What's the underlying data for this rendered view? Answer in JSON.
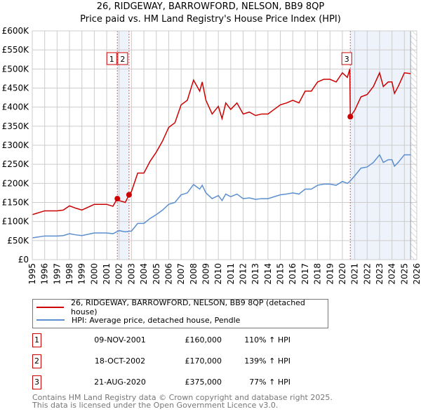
{
  "chart_data": {
    "type": "line",
    "title": "26, RIDGEWAY, BARROWFORD, NELSON, BB9 8QP",
    "subtitle": "Price paid vs. HM Land Registry's House Price Index (HPI)",
    "xlim": [
      1995,
      2026
    ],
    "ylim": [
      0,
      600000
    ],
    "yticks": [
      {
        "v": 0,
        "label": "£0"
      },
      {
        "v": 50000,
        "label": "£50K"
      },
      {
        "v": 100000,
        "label": "£100K"
      },
      {
        "v": 150000,
        "label": "£150K"
      },
      {
        "v": 200000,
        "label": "£200K"
      },
      {
        "v": 250000,
        "label": "£250K"
      },
      {
        "v": 300000,
        "label": "£300K"
      },
      {
        "v": 350000,
        "label": "£350K"
      },
      {
        "v": 400000,
        "label": "£400K"
      },
      {
        "v": 450000,
        "label": "£450K"
      },
      {
        "v": 500000,
        "label": "£500K"
      },
      {
        "v": 550000,
        "label": "£550K"
      },
      {
        "v": 600000,
        "label": "£600K"
      }
    ],
    "xticks": [
      "1995",
      "1996",
      "1997",
      "1998",
      "1999",
      "2000",
      "2001",
      "2002",
      "2003",
      "2004",
      "2005",
      "2006",
      "2007",
      "2008",
      "2009",
      "2010",
      "2011",
      "2012",
      "2013",
      "2014",
      "2015",
      "2016",
      "2017",
      "2018",
      "2019",
      "2020",
      "2021",
      "2022",
      "2023",
      "2024",
      "2025",
      "2026"
    ],
    "grid": true,
    "series": [
      {
        "name": "26, RIDGEWAY, BARROWFORD, NELSON, BB9 8QP (detached house)",
        "color": "#cc0000",
        "x": [
          1995,
          1996,
          1997,
          1997.5,
          1998,
          1998.5,
          1999,
          2000,
          2000.5,
          2001,
          2001.5,
          2001.86,
          2002,
          2002.5,
          2002.8,
          2003,
          2003.5,
          2004,
          2004.5,
          2005,
          2005.5,
          2006,
          2006.5,
          2007,
          2007.5,
          2008,
          2008.5,
          2008.7,
          2009,
          2009.5,
          2010,
          2010.3,
          2010.6,
          2011,
          2011.5,
          2012,
          2012.5,
          2013,
          2013.5,
          2014,
          2014.5,
          2015,
          2015.5,
          2016,
          2016.5,
          2017,
          2017.5,
          2018,
          2018.5,
          2019,
          2019.5,
          2020,
          2020.4,
          2020.6,
          2020.64,
          2021,
          2021.5,
          2022,
          2022.5,
          2023,
          2023.3,
          2023.7,
          2024,
          2024.2,
          2024.5,
          2025,
          2025.5
        ],
        "y": [
          118000,
          128000,
          128000,
          130000,
          141000,
          135000,
          130000,
          145000,
          145000,
          145000,
          140000,
          160000,
          155000,
          150000,
          170000,
          179000,
          227000,
          227000,
          258000,
          282000,
          311000,
          347000,
          359000,
          406000,
          418000,
          471000,
          442000,
          466000,
          418000,
          382000,
          402000,
          370000,
          411000,
          394000,
          411000,
          382000,
          387000,
          378000,
          382000,
          382000,
          394000,
          406000,
          411000,
          418000,
          411000,
          442000,
          442000,
          466000,
          473000,
          473000,
          466000,
          490000,
          478000,
          500000,
          375000,
          392000,
          427000,
          433000,
          454000,
          490000,
          454000,
          466000,
          466000,
          436000,
          454000,
          490000,
          488000
        ]
      },
      {
        "name": "HPI: Average price, detached house, Pendle",
        "color": "#5b8fd0",
        "x": [
          1995,
          1996,
          1997,
          1997.5,
          1998,
          1998.5,
          1999,
          2000,
          2000.5,
          2001,
          2001.5,
          2002,
          2002.5,
          2003,
          2003.5,
          2004,
          2004.5,
          2005,
          2005.5,
          2006,
          2006.5,
          2007,
          2007.5,
          2008,
          2008.5,
          2008.7,
          2009,
          2009.5,
          2010,
          2010.3,
          2010.6,
          2011,
          2011.5,
          2012,
          2012.5,
          2013,
          2013.5,
          2014,
          2014.5,
          2015,
          2015.5,
          2016,
          2016.5,
          2017,
          2017.5,
          2018,
          2018.5,
          2019,
          2019.5,
          2020,
          2020.4,
          2020.6,
          2021,
          2021.5,
          2022,
          2022.5,
          2023,
          2023.3,
          2023.7,
          2024,
          2024.2,
          2024.5,
          2025,
          2025.5
        ],
        "y": [
          57000,
          62000,
          62000,
          63000,
          68000,
          65000,
          63000,
          70000,
          70000,
          70000,
          68000,
          76000,
          73000,
          75000,
          95000,
          95000,
          108000,
          118000,
          130000,
          145000,
          150000,
          170000,
          175000,
          197000,
          185000,
          195000,
          175000,
          160000,
          168000,
          155000,
          172000,
          165000,
          172000,
          160000,
          162000,
          158000,
          160000,
          160000,
          165000,
          170000,
          172000,
          175000,
          172000,
          185000,
          185000,
          195000,
          198000,
          198000,
          195000,
          205000,
          200000,
          205000,
          220000,
          240000,
          243000,
          255000,
          275000,
          255000,
          262000,
          262000,
          245000,
          255000,
          275000,
          275000
        ]
      }
    ],
    "sales": [
      {
        "num": "1",
        "date": "09-NOV-2001",
        "x": 2001.86,
        "price_label": "£160,000",
        "price": 160000,
        "hpi": "110% ↑ HPI"
      },
      {
        "num": "2",
        "date": "18-OCT-2002",
        "x": 2002.8,
        "price_label": "£170,000",
        "price": 170000,
        "hpi": "139% ↑ HPI"
      },
      {
        "num": "3",
        "date": "21-AUG-2020",
        "x": 2020.64,
        "price_label": "£375,000",
        "price": 375000,
        "hpi": "77% ↑ HPI"
      }
    ],
    "data_end": 2025.5
  },
  "footer": {
    "line1": "Contains HM Land Registry data © Crown copyright and database right 2025.",
    "line2": "This data is licensed under the Open Government Licence v3.0."
  }
}
